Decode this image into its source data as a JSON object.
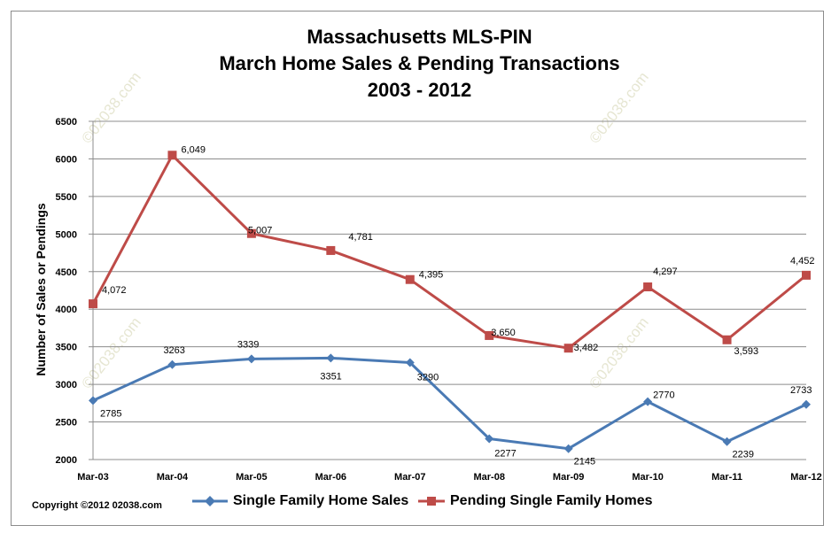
{
  "chart_data": {
    "type": "line",
    "title": [
      "Massachusetts MLS-PIN",
      "March Home Sales & Pending Transactions",
      "2003 - 2012"
    ],
    "ylabel": "Number of Sales or Pendings",
    "xlabel": "",
    "ylim": [
      2000,
      6500
    ],
    "yticks": [
      "2000",
      "2500",
      "3000",
      "3500",
      "4000",
      "4500",
      "5000",
      "5500",
      "6000",
      "6500"
    ],
    "grid": true,
    "legend_placement": "bottom",
    "categories": [
      "Mar-03",
      "Mar-04",
      "Mar-05",
      "Mar-06",
      "Mar-07",
      "Mar-08",
      "Mar-09",
      "Mar-10",
      "Mar-11",
      "Mar-12"
    ],
    "series": [
      {
        "name": "Single Family Home Sales",
        "color": "#4a7ab4",
        "marker": "diamond",
        "values": [
          2785,
          3263,
          3339,
          3351,
          3290,
          2277,
          2145,
          2770,
          2239,
          2733
        ],
        "labels": [
          "2785",
          "3263",
          "3339",
          "3351",
          "3290",
          "2277",
          "2145",
          "2770",
          "2239",
          "2733"
        ]
      },
      {
        "name": "Pending Single Family Homes",
        "color": "#be4b48",
        "marker": "square",
        "values": [
          4072,
          6049,
          5007,
          4781,
          4395,
          3650,
          3482,
          4297,
          3593,
          4452
        ],
        "labels": [
          "4,072",
          "6,049",
          "5,007",
          "4,781",
          "4,395",
          "3,650",
          "3,482",
          "4,297",
          "3,593",
          "4,452"
        ]
      }
    ],
    "watermark": "©02038.com",
    "copyright": "Copyright  ©2012 02038.com"
  }
}
